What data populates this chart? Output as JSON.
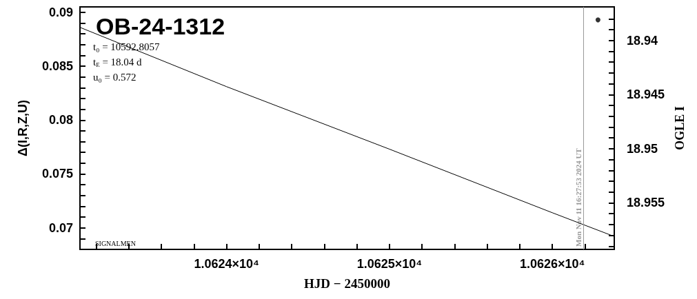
{
  "chart_data": {
    "type": "line",
    "title": "OB-24-1312",
    "xlabel": "HJD − 2450000",
    "ylabel": "Δ(I,R,Z,U)",
    "y2label": "OGLE I",
    "annotations": [
      "t₀ = 10592.8057",
      "t$_{E}$ = 18.04 d",
      "u₀ = 0.572",
      "SIGNALMEN",
      {
        "text": "Mon Nov 11 16:27:53 2024 UT",
        "x": 10626.19
      }
    ],
    "xlim": [
      10623.1,
      10626.38
    ],
    "xticks": [
      {
        "value": 10623.2,
        "label": null
      },
      {
        "value": 10623.4,
        "label": null
      },
      {
        "value": 10623.6,
        "label": null
      },
      {
        "value": 10623.8,
        "label": null
      },
      {
        "value": 10624,
        "label": "1.0624×10⁴"
      },
      {
        "value": 10624.2,
        "label": null
      },
      {
        "value": 10624.4,
        "label": null
      },
      {
        "value": 10624.6,
        "label": null
      },
      {
        "value": 10624.8,
        "label": null
      },
      {
        "value": 10625,
        "label": "1.0625×10⁴"
      },
      {
        "value": 10625.2,
        "label": null
      },
      {
        "value": 10625.4,
        "label": null
      },
      {
        "value": 10625.6,
        "label": null
      },
      {
        "value": 10625.8,
        "label": null
      },
      {
        "value": 10626,
        "label": "1.0626×10⁴"
      },
      {
        "value": 10626.2,
        "label": null
      }
    ],
    "ylim": [
      0.068,
      0.0905
    ],
    "yticks": [
      {
        "value": 0.069,
        "label": null
      },
      0.07,
      {
        "value": 0.071,
        "label": null
      },
      {
        "value": 0.072,
        "label": null
      },
      {
        "value": 0.073,
        "label": null
      },
      {
        "value": 0.074,
        "label": null
      },
      0.075,
      {
        "value": 0.076,
        "label": null
      },
      {
        "value": 0.077,
        "label": null
      },
      {
        "value": 0.078,
        "label": null
      },
      {
        "value": 0.079,
        "label": null
      },
      0.08,
      {
        "value": 0.081,
        "label": null
      },
      {
        "value": 0.082,
        "label": null
      },
      {
        "value": 0.083,
        "label": null
      },
      {
        "value": 0.084,
        "label": null
      },
      0.085,
      {
        "value": 0.086,
        "label": null
      },
      {
        "value": 0.087,
        "label": null
      },
      {
        "value": 0.088,
        "label": null
      },
      {
        "value": 0.089,
        "label": null
      },
      0.09
    ],
    "y2lim": [
      18.9593,
      18.9369
    ],
    "y2ticks": [
      {
        "value": 18.938,
        "label": null
      },
      {
        "value": 18.939,
        "label": null
      },
      18.94,
      {
        "value": 18.941,
        "label": null
      },
      {
        "value": 18.942,
        "label": null
      },
      {
        "value": 18.943,
        "label": null
      },
      {
        "value": 18.944,
        "label": null
      },
      18.945,
      {
        "value": 18.946,
        "label": null
      },
      {
        "value": 18.947,
        "label": null
      },
      {
        "value": 18.948,
        "label": null
      },
      {
        "value": 18.949,
        "label": null
      },
      18.95,
      {
        "value": 18.951,
        "label": null
      },
      {
        "value": 18.952,
        "label": null
      },
      {
        "value": 18.953,
        "label": null
      },
      {
        "value": 18.954,
        "label": null
      },
      18.955,
      {
        "value": 18.956,
        "label": null
      },
      {
        "value": 18.957,
        "label": null
      },
      {
        "value": 18.958,
        "label": null
      },
      {
        "value": 18.959,
        "label": null
      }
    ],
    "series": [
      {
        "type": "line",
        "color": "#000000",
        "marker": "none",
        "x": [
          10623.1,
          10624,
          10625,
          10626,
          10626.38
        ],
        "values": [
          0.0886,
          0.0831,
          0.0773,
          0.0714,
          0.0692
        ]
      },
      {
        "type": "scatter",
        "color": "#000000",
        "marker": "circle",
        "axis": "y2",
        "x": [
          10626.28
        ],
        "values": [
          18.9381
        ]
      }
    ],
    "ref_lines": [
      {
        "axis": "x",
        "value": 10626.19,
        "color": "#999999"
      }
    ],
    "grid": false
  }
}
